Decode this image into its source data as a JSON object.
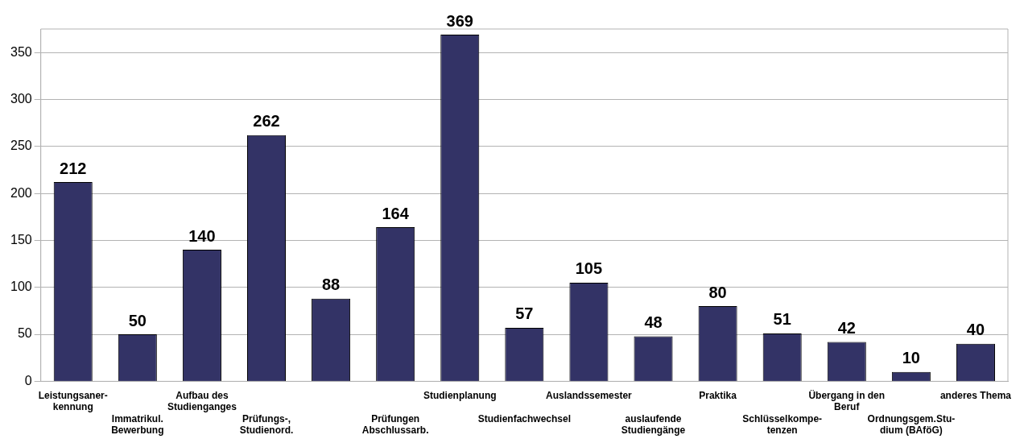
{
  "chart_data": {
    "type": "bar",
    "categories": [
      "Leistungsaner-\nkennung",
      "Immatrikul.\nBewerbung",
      "Aufbau des\nStudienganges",
      "Prüfungs-,\nStudienord.",
      null,
      "Prüfungen\nAbschlussarb.",
      "Studienplanung",
      "Studienfachwechsel",
      "Auslandssemester",
      "auslaufende\nStudiengänge",
      "Praktika",
      "Schlüsselkompe-\ntenzen",
      "Übergang in den\nBeruf",
      "Ordnungsgem.Stu-\ndium (BAföG)",
      "anderes Thema"
    ],
    "values": [
      212,
      50,
      140,
      262,
      88,
      164,
      369,
      57,
      105,
      48,
      80,
      51,
      42,
      10,
      40
    ],
    "color": "#333366",
    "ylim": [
      0,
      375
    ],
    "yticks": [
      0,
      50,
      100,
      150,
      200,
      250,
      300,
      350
    ],
    "grid": "y",
    "data_labels": true,
    "legend": false
  }
}
